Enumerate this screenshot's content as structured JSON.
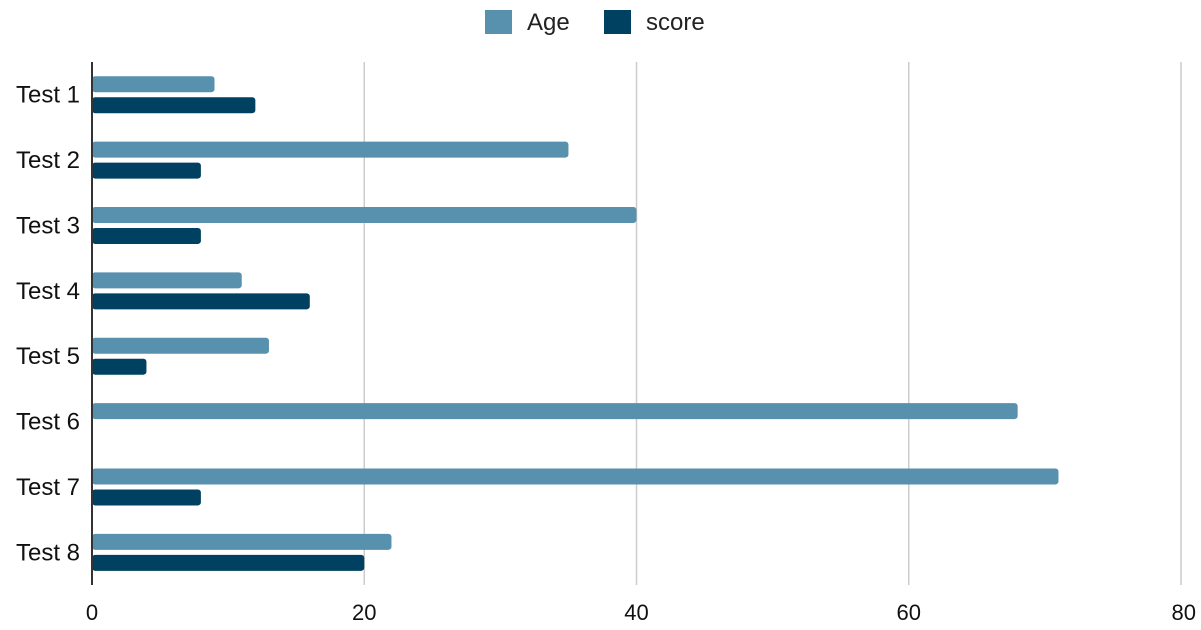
{
  "chart_data": {
    "type": "bar",
    "orientation": "horizontal",
    "categories": [
      "Test 1",
      "Test 2",
      "Test 3",
      "Test 4",
      "Test 5",
      "Test 6",
      "Test 7",
      "Test 8"
    ],
    "series": [
      {
        "name": "Age",
        "color": "#5891ad",
        "values": [
          9,
          35,
          40,
          11,
          13,
          68,
          71,
          22
        ]
      },
      {
        "name": "score",
        "color": "#004161",
        "values": [
          12,
          8,
          8,
          16,
          4,
          0,
          8,
          20
        ]
      }
    ],
    "xlim": [
      0,
      80
    ],
    "xticks": [
      "0",
      "20",
      "40",
      "60",
      "80"
    ],
    "grid": true,
    "legend": "top-center",
    "title": "",
    "xlabel": "",
    "ylabel": ""
  }
}
